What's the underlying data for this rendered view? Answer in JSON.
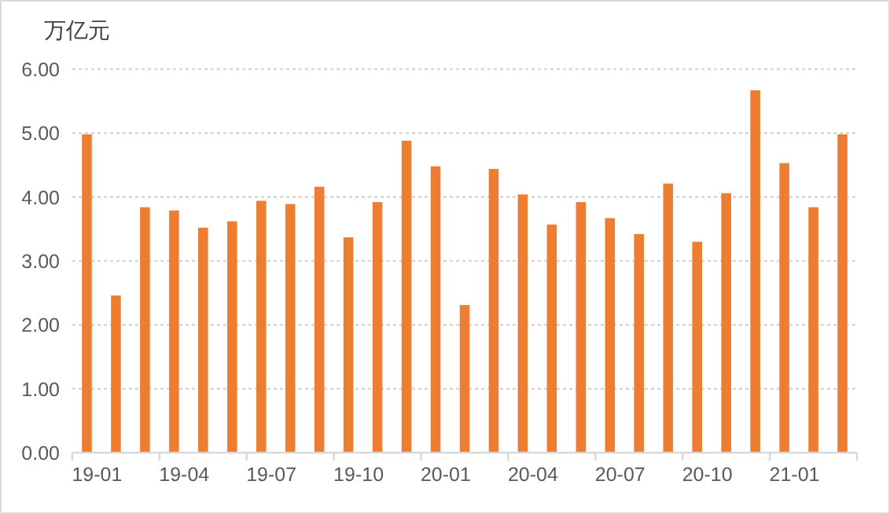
{
  "chart_data": {
    "type": "bar",
    "ylabel": "万亿元",
    "categories": [
      "19-01",
      null,
      null,
      "19-04",
      null,
      null,
      "19-07",
      null,
      null,
      "19-10",
      null,
      null,
      "20-01",
      null,
      null,
      "20-04",
      null,
      null,
      "20-07",
      null,
      null,
      "20-10",
      null,
      null,
      "21-01",
      null,
      null
    ],
    "values": [
      4.98,
      2.46,
      3.84,
      3.79,
      3.52,
      3.62,
      3.94,
      3.89,
      4.16,
      3.37,
      3.92,
      4.88,
      4.48,
      2.31,
      4.44,
      4.04,
      3.57,
      3.92,
      3.67,
      3.42,
      4.21,
      3.3,
      4.06,
      5.67,
      4.53,
      3.84,
      4.98
    ],
    "color": "#ed7d31",
    "ylim": [
      0,
      6
    ],
    "yticks": [
      {
        "value": 0,
        "label": "0.00"
      },
      {
        "value": 1,
        "label": "1.00"
      },
      {
        "value": 2,
        "label": "2.00"
      },
      {
        "value": 3,
        "label": "3.00"
      },
      {
        "value": 4,
        "label": "4.00"
      },
      {
        "value": 5,
        "label": "5.00"
      },
      {
        "value": 6,
        "label": "6.00"
      }
    ],
    "grid": "y"
  }
}
